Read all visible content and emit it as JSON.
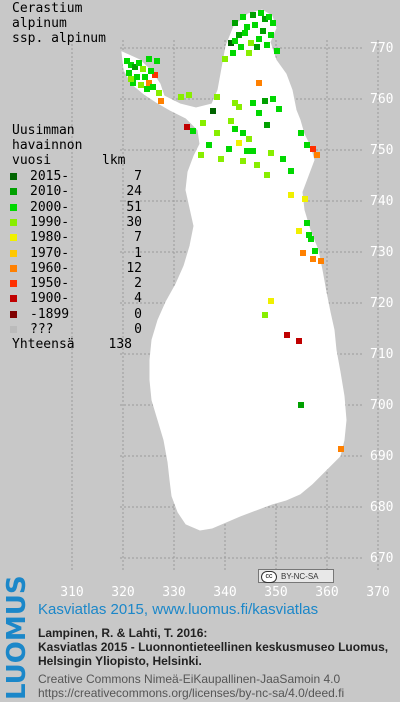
{
  "species": {
    "line1": "Cerastium",
    "line2": "alpinum",
    "line3": "ssp. alpinum"
  },
  "legend": {
    "heading1": "Uusimman",
    "heading2": "havainnon",
    "heading3": "vuosi",
    "heading_count": "lkm",
    "items": [
      {
        "label": "2015-",
        "count": "7",
        "color": "#006400"
      },
      {
        "label": "2010-",
        "count": "24",
        "color": "#00a000"
      },
      {
        "label": "2000-",
        "count": "51",
        "color": "#00d800"
      },
      {
        "label": "1990-",
        "count": "30",
        "color": "#88ee00"
      },
      {
        "label": "1980-",
        "count": "7",
        "color": "#f0f000"
      },
      {
        "label": "1970-",
        "count": "1",
        "color": "#ffc800"
      },
      {
        "label": "1960-",
        "count": "12",
        "color": "#ff8000"
      },
      {
        "label": "1950-",
        "count": "2",
        "color": "#ff3000"
      },
      {
        "label": "1900-",
        "count": "4",
        "color": "#c00000"
      },
      {
        "label": "-1899",
        "count": "0",
        "color": "#800000"
      },
      {
        "label": "???",
        "count": "0",
        "color": "#bbbbbb"
      }
    ],
    "total_label": "Yhteensä",
    "total_count": "138"
  },
  "axes": {
    "x_ticks": [
      "310",
      "320",
      "330",
      "340",
      "350",
      "360",
      "370"
    ],
    "y_ticks": [
      "770",
      "760",
      "750",
      "740",
      "730",
      "720",
      "710",
      "700",
      "690",
      "680",
      "670"
    ]
  },
  "license_badge": "BY-NC-SA",
  "license_badge_cc": "cc",
  "footer": {
    "brand": "LUOMUS",
    "title": "Kasviatlas 2015, www.luomus.fi/kasviatlas",
    "citation1": "Lampinen, R. & Lahti, T. 2016:",
    "citation2": "Kasviatlas 2015 - Luonnontieteellinen keskusmuseo Luomus,",
    "citation3": "Helsingin Yliopisto, Helsinki.",
    "license1": "Creative Commons Nimeä-EiKaupallinen-JaaSamoin 4.0",
    "license2": "https://creativecommons.org/licenses/by-nc-sa/4.0/deed.fi"
  }
}
